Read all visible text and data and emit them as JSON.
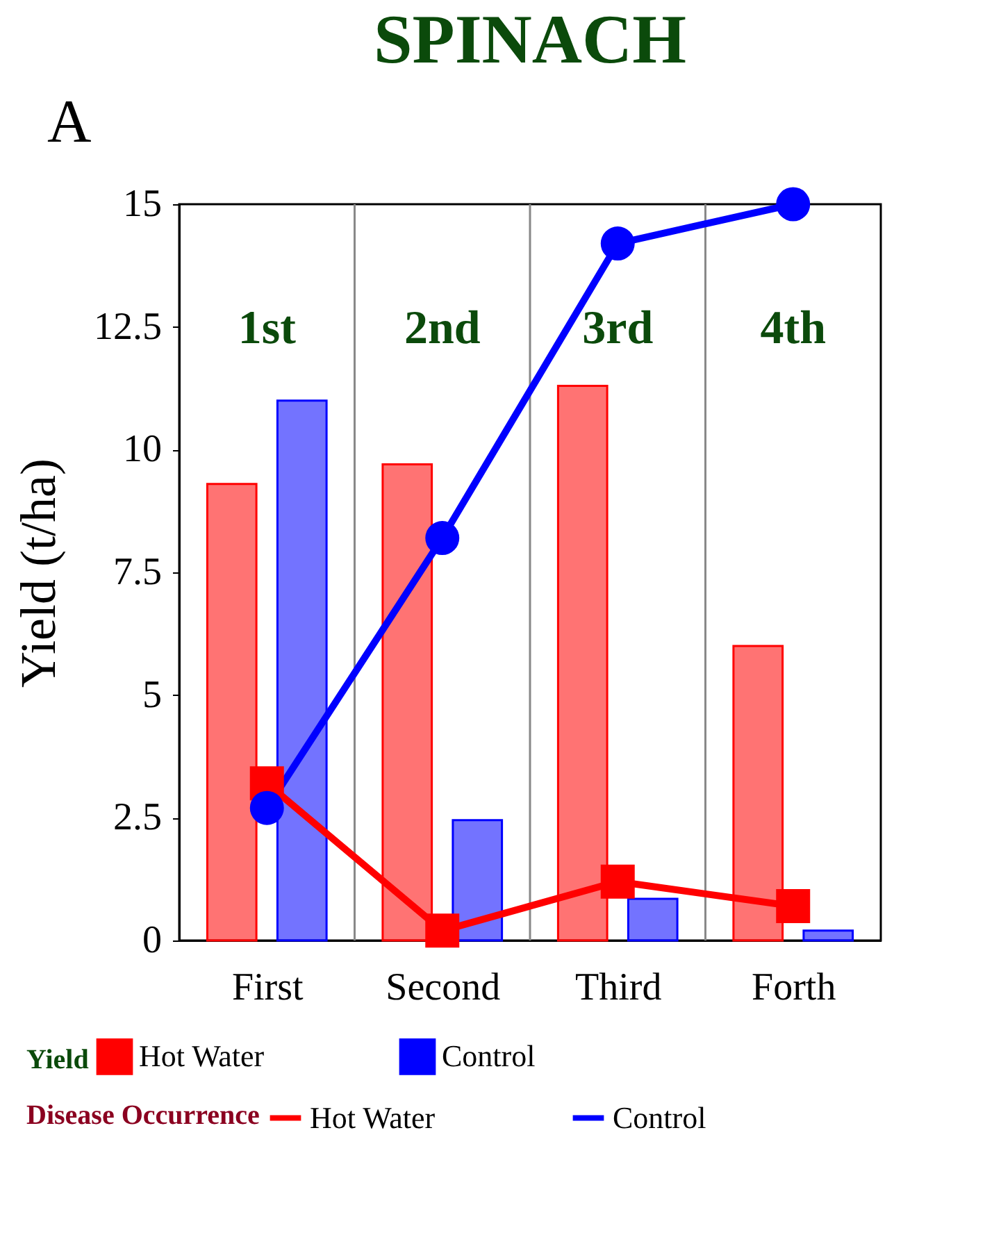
{
  "chart_data": {
    "type": "bar",
    "title": "SPINACH",
    "ylabel": "Yield (t/ha)",
    "categories": [
      "First",
      "Second",
      "Third",
      "Forth"
    ],
    "series": [
      {
        "name": "Hot Water",
        "color": "#ff0000",
        "values": [
          9.3,
          9.7,
          11.3,
          6.0
        ]
      },
      {
        "name": "Control",
        "color": "#0000ff",
        "values": [
          11.0,
          2.45,
          0.85,
          0.2
        ]
      },
      {
        "name": "Hot Water",
        "type": "line",
        "color": "#ff0000",
        "marker": "square",
        "values": [
          3.2,
          0.2,
          1.2,
          0.7
        ]
      },
      {
        "name": "Control",
        "type": "line",
        "color": "#0000ff",
        "marker": "circle",
        "values": [
          2.7,
          8.2,
          14.2,
          15.0
        ]
      }
    ],
    "legend_title": [
      "Yield",
      "Disease Occurrence"
    ],
    "ylim": [
      0,
      15
    ],
    "yticks": [
      0,
      2.5,
      5,
      7.5,
      10,
      12.5,
      15
    ],
    "grid": "x",
    "legend": "bottom",
    "annotations": [
      "A",
      "1st",
      "2nd",
      "3rd",
      "4th"
    ]
  }
}
